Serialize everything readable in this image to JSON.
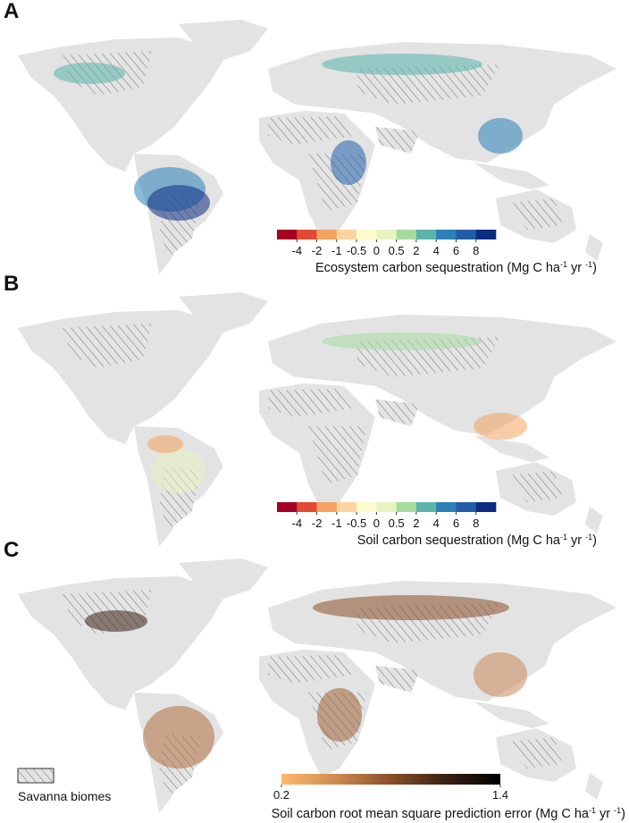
{
  "panels": [
    {
      "label": "A",
      "colorbar": {
        "colors": [
          "#a50026",
          "#e34a33",
          "#f4a261",
          "#fdd49e",
          "#fffbd0",
          "#e8f3c0",
          "#a6dba0",
          "#5ab4ac",
          "#2c7fb8",
          "#225ea8",
          "#0c2c84"
        ],
        "ticks": [
          -4,
          -2,
          -1,
          -0.5,
          0,
          0.5,
          2,
          4,
          6,
          8
        ],
        "title": [
          "Ecosystem carbon sequestration (Mg C ha",
          "-1",
          " yr ",
          "-1",
          ")"
        ]
      }
    },
    {
      "label": "B",
      "colorbar": {
        "colors": [
          "#a50026",
          "#e34a33",
          "#f4a261",
          "#fdd49e",
          "#fffbd0",
          "#e8f3c0",
          "#a6dba0",
          "#5ab4ac",
          "#2c7fb8",
          "#225ea8",
          "#0c2c84"
        ],
        "ticks": [
          -4,
          -2,
          -1,
          -0.5,
          0,
          0.5,
          2,
          4,
          6,
          8
        ],
        "title": [
          "Soil carbon sequestration (Mg C ha",
          "-1",
          " yr ",
          "-1",
          ")"
        ]
      }
    },
    {
      "label": "C",
      "colorbar": {
        "gradient": [
          "#fdb96e",
          "#d08a52",
          "#8a4f2a",
          "#3a2012",
          "#000000"
        ],
        "range": [
          0.2,
          1.4
        ],
        "ticks": [
          0.2,
          1.4
        ],
        "title": [
          "Soil carbon root mean square prediction error (Mg C ha",
          "-1",
          " yr ",
          "-1",
          ")"
        ]
      }
    }
  ],
  "legend": {
    "label": "Savanna biomes"
  }
}
